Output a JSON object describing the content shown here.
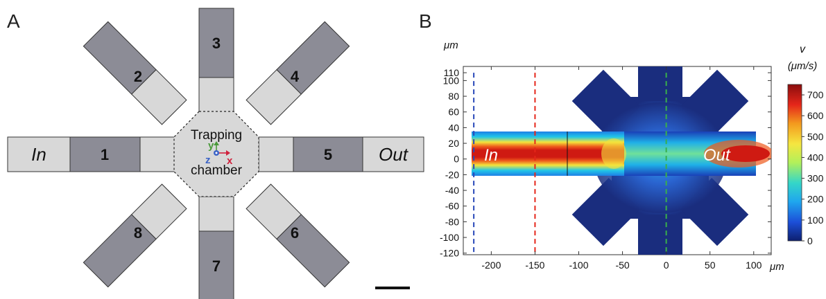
{
  "panel_a": {
    "label": "A",
    "chamber_line1": "Trapping",
    "chamber_line2": "chamber",
    "inlet": "In",
    "outlet": "Out",
    "channels": [
      "1",
      "2",
      "3",
      "4",
      "5",
      "6",
      "7",
      "8"
    ],
    "axes": {
      "x": "x",
      "y": "y",
      "z": "z"
    }
  },
  "panel_b": {
    "label": "B",
    "inlet": "In",
    "outlet": "Out",
    "y_unit": "μm",
    "x_unit": "μm",
    "colorbar_symbol": "v",
    "colorbar_unit": "(μm/s)",
    "y_ticks": [
      "110",
      "100",
      "80",
      "60",
      "40",
      "20",
      "0",
      "-20",
      "-40",
      "-60",
      "-80",
      "-100",
      "-120"
    ],
    "x_ticks": [
      "-200",
      "-150",
      "-100",
      "-50",
      "0",
      "50",
      "100"
    ],
    "colorbar_ticks": [
      "700",
      "600",
      "500",
      "400",
      "300",
      "200",
      "100",
      "0"
    ],
    "colorbar_range": [
      0,
      750
    ],
    "colorbar_colors": [
      "#0d1f6e",
      "#1c4fd8",
      "#1fa6ee",
      "#34d6c8",
      "#b2f05a",
      "#f5e640",
      "#f39a1e",
      "#e5261a",
      "#8a0d0d"
    ],
    "x_range": [
      -232,
      120
    ],
    "y_range": [
      -122,
      118
    ],
    "cut_lines": [
      {
        "x": -220,
        "color": "#2747b8"
      },
      {
        "x": -150,
        "color": "#e5261a"
      },
      {
        "x": 0,
        "color": "#39b04a"
      }
    ]
  }
}
